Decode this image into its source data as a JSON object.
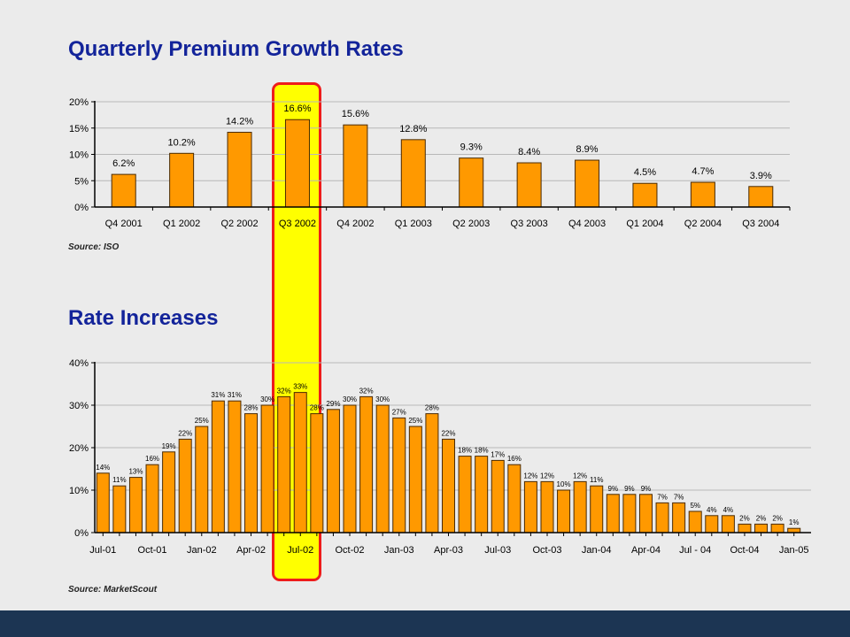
{
  "slide": {
    "title1": "Quarterly Premium Growth Rates",
    "source1": "Source: ISO",
    "title2": "Rate Increases",
    "source2": "Source: MarketScout"
  },
  "colors": {
    "background": "#ebebeb",
    "bar_fill": "#ff9900",
    "bar_stroke": "#4a2a00",
    "title": "#13249a",
    "highlight_fill": "#ffff00",
    "highlight_border": "#ee1c1c",
    "footer": "#1c3553"
  },
  "chart_data": [
    {
      "type": "bar",
      "title": "Quarterly Premium Growth Rates",
      "categories": [
        "Q4 2001",
        "Q1 2002",
        "Q2 2002",
        "Q3 2002",
        "Q4 2002",
        "Q1 2003",
        "Q2 2003",
        "Q3 2003",
        "Q4 2003",
        "Q1 2004",
        "Q2 2004",
        "Q3 2004"
      ],
      "values": [
        6.2,
        10.2,
        14.2,
        16.6,
        15.6,
        12.8,
        9.3,
        8.4,
        8.9,
        4.5,
        4.7,
        3.9
      ],
      "value_labels": [
        "6.2%",
        "10.2%",
        "14.2%",
        "16.6%",
        "15.6%",
        "12.8%",
        "9.3%",
        "8.4%",
        "8.9%",
        "4.5%",
        "4.7%",
        "3.9%"
      ],
      "yticks": [
        "0%",
        "5%",
        "10%",
        "15%",
        "20%"
      ],
      "ylim": [
        0,
        20
      ],
      "grid": true,
      "highlight_category": "Q3 2002"
    },
    {
      "type": "bar",
      "title": "Rate Increases",
      "values": [
        14,
        11,
        13,
        16,
        19,
        22,
        25,
        31,
        31,
        28,
        30,
        32,
        33,
        28,
        29,
        30,
        32,
        30,
        27,
        25,
        28,
        22,
        18,
        18,
        17,
        16,
        12,
        12,
        10,
        12,
        11,
        9,
        9,
        9,
        7,
        7,
        5,
        4,
        4,
        2,
        2,
        2,
        1
      ],
      "value_labels": [
        "14%",
        "11%",
        "13%",
        "16%",
        "19%",
        "22%",
        "25%",
        "31%",
        "31%",
        "28%",
        "30%",
        "32%",
        "33%",
        "28%",
        "29%",
        "30%",
        "32%",
        "30%",
        "27%",
        "25%",
        "28%",
        "22%",
        "18%",
        "18%",
        "17%",
        "16%",
        "12%",
        "12%",
        "10%",
        "12%",
        "11%",
        "9%",
        "9%",
        "9%",
        "7%",
        "7%",
        "5%",
        "4%",
        "4%",
        "2%",
        "2%",
        "2%",
        "1%"
      ],
      "x_tick_labels": [
        "Jul-01",
        "Oct-01",
        "Jan-02",
        "Apr-02",
        "Jul-02",
        "Oct-02",
        "Jan-03",
        "Apr-03",
        "Jul-03",
        "Oct-03",
        "Jan-04",
        "Apr-04",
        "Jul - 04",
        "Oct-04",
        "Jan-05"
      ],
      "yticks": [
        "0%",
        "10%",
        "20%",
        "30%",
        "40%"
      ],
      "ylim": [
        0,
        40
      ],
      "grid": true,
      "highlight_tick": "Jul-02"
    }
  ]
}
